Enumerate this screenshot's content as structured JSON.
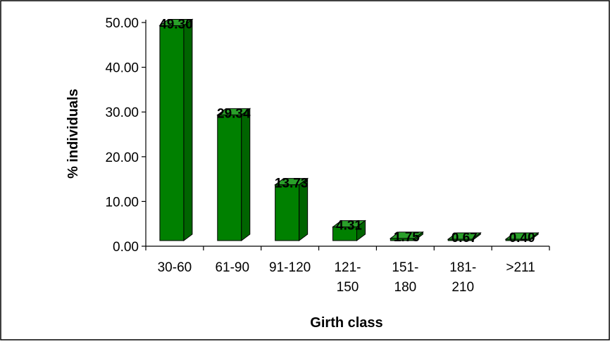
{
  "chart_data": {
    "type": "bar",
    "title": "",
    "xlabel": "Girth class",
    "ylabel": "% individuals",
    "categories": [
      [
        "30-60"
      ],
      [
        "61-90"
      ],
      [
        "91-120"
      ],
      [
        "121-",
        "150"
      ],
      [
        "151-",
        "180"
      ],
      [
        "181-",
        "210"
      ],
      [
        ">211"
      ]
    ],
    "values": [
      49.3,
      29.34,
      13.73,
      4.31,
      1.75,
      0.67,
      0.4
    ],
    "data_labels": [
      "49.30",
      "29.34",
      "13.73",
      "4.31",
      "1.75",
      "0.67",
      "0.40"
    ],
    "ylim": [
      0,
      50
    ],
    "yticks": [
      "0.00",
      "10.00",
      "20.00",
      "30.00",
      "40.00",
      "50.00"
    ],
    "grid": false,
    "legend": "none",
    "bar_style": "3d",
    "colors": {
      "bar_front": "#008000",
      "bar_top": "#2aa02a",
      "bar_side": "#006400",
      "bar_stroke": "#000000",
      "axis": "#000000",
      "frame": "#000000"
    }
  }
}
